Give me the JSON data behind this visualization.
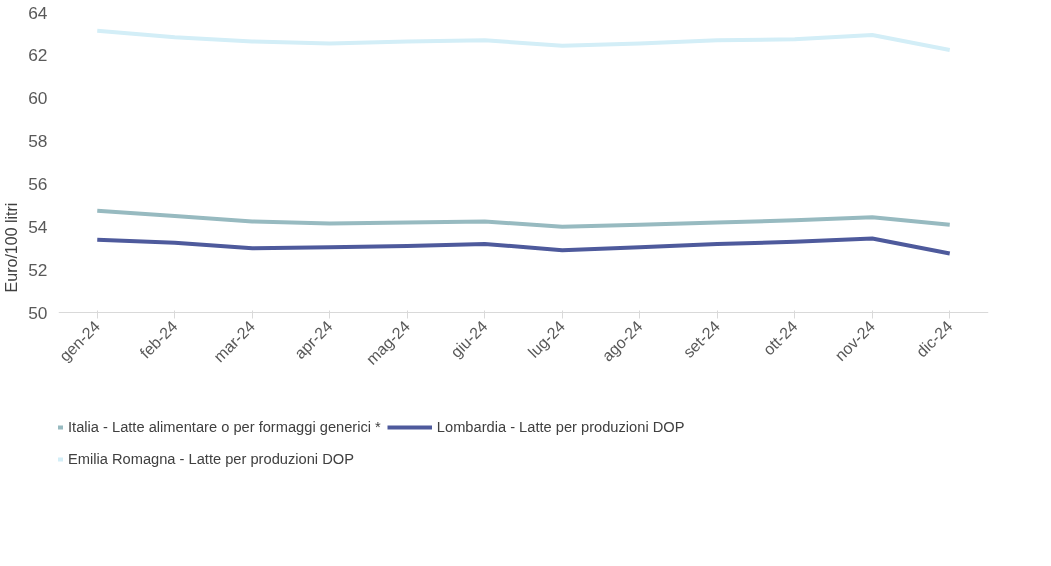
{
  "chart_data": {
    "type": "line",
    "ylabel": "Euro/100 litri",
    "categories": [
      "gen-24",
      "feb-24",
      "mar-24",
      "apr-24",
      "mag-24",
      "giu-24",
      "lug-24",
      "ago-24",
      "set-24",
      "ott-24",
      "nov-24",
      "dic-24"
    ],
    "series": [
      {
        "name": "Italia - Latte alimentare o per formaggi generici *",
        "color": "#97bac0",
        "values": [
          54.75,
          54.5,
          54.25,
          54.15,
          54.2,
          54.25,
          54.0,
          54.1,
          54.2,
          54.3,
          54.45,
          54.1
        ]
      },
      {
        "name": "Lombardia - Latte per produzioni DOP",
        "color": "#4e5a9c",
        "values": [
          53.4,
          53.25,
          53.0,
          53.05,
          53.1,
          53.2,
          52.9,
          53.05,
          53.2,
          53.3,
          53.45,
          52.75
        ]
      },
      {
        "name": "Emilia Romagna - Latte per produzioni DOP",
        "color": "#d3eef7",
        "values": [
          63.15,
          62.85,
          62.65,
          62.55,
          62.65,
          62.7,
          62.45,
          62.55,
          62.7,
          62.75,
          62.95,
          62.25
        ]
      }
    ],
    "ylim": [
      50,
      64
    ],
    "yticks": [
      50,
      52,
      54,
      56,
      58,
      60,
      62,
      64
    ],
    "grid": false,
    "legend": "bottom",
    "marker": "none",
    "line_style": "solid"
  }
}
